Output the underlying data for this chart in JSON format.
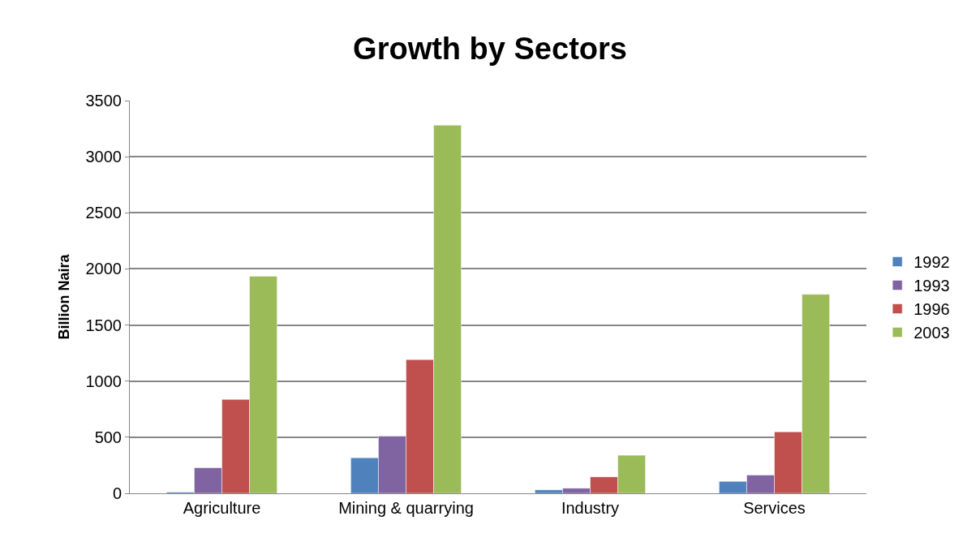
{
  "chart_data": {
    "type": "bar",
    "title": "Growth by Sectors",
    "ylabel": "Billion Naira",
    "categories": [
      "Agriculture",
      "Mining & quarrying",
      "Industry",
      "Services"
    ],
    "series": [
      {
        "name": "1992",
        "color": "#4f81bd",
        "values": [
          10,
          317,
          31,
          106
        ]
      },
      {
        "name": "1993",
        "color": "#8064a2",
        "values": [
          228,
          510,
          46,
          163
        ]
      },
      {
        "name": "1996",
        "color": "#c0504d",
        "values": [
          837,
          1192,
          147,
          548
        ]
      },
      {
        "name": "2003",
        "color": "#9bbb59",
        "values": [
          1935,
          3281,
          339,
          1774
        ]
      }
    ],
    "ylim": [
      0,
      3500
    ],
    "yticks": [
      0,
      500,
      1000,
      1500,
      2000,
      2500,
      3000,
      3500
    ],
    "grid": "y",
    "legend": "right"
  }
}
